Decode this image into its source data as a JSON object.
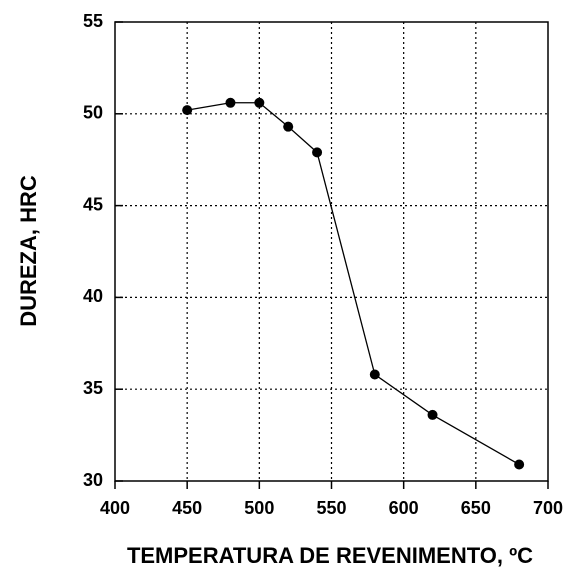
{
  "chart_data": {
    "type": "line",
    "x_label": "TEMPERATURA DE REVENIMENTO, ºC",
    "y_label": "DUREZA, HRC",
    "x": [
      450,
      480,
      500,
      520,
      540,
      580,
      620,
      680
    ],
    "series": [
      {
        "color": "#000000",
        "values": [
          50.2,
          50.6,
          50.6,
          49.3,
          47.9,
          35.8,
          33.6,
          30.9
        ]
      }
    ],
    "xlim": [
      400,
      700
    ],
    "xticks": [
      400,
      450,
      500,
      550,
      600,
      650,
      700
    ],
    "ylim": [
      30,
      55
    ],
    "yticks": [
      30,
      35,
      40,
      45,
      50,
      55
    ],
    "grid": true,
    "markers": true
  }
}
